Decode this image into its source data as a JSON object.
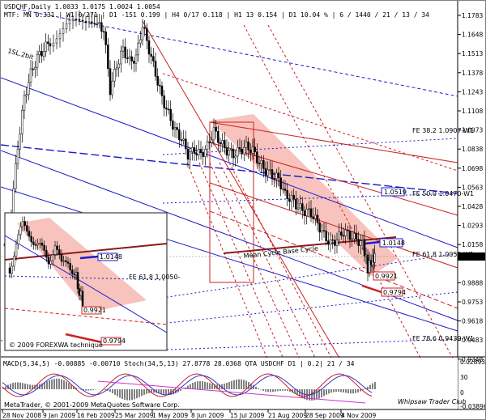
{
  "header": {
    "symbol_line": "USDCHF,Daily  1.0033  1.0175  1.0024  1.0054",
    "mtf_line": "MTF: MN  0.331 | W1  0/271 | D1  -151  0.199 | H4  0/17  0.118 | H1  13  0.154 | D1  10.04 % | 6 / 1440 / 21 / 13 / 34"
  },
  "price_axis": {
    "ticks": [
      "1.1783",
      "1.1648",
      "1.1513",
      "1.1378",
      "1.1243",
      "1.1108",
      "1.0973",
      "1.0838",
      "1.0698",
      "1.0563",
      "1.0428",
      "1.0293",
      "1.0158",
      "1.0054",
      "0.9888",
      "0.9753",
      "0.9618",
      "0.9483",
      "0.9348"
    ],
    "current_price": "1.0054"
  },
  "indicator": {
    "label": "MACD(5,34,5)  -0.00885  -0.00710   Stoch(34,5,13)  27.8778  28.0368   QTA USDCHF D1  |  0.2|  21 / 34",
    "ticks": [
      "0.02893",
      "30",
      "0",
      "-0.03896"
    ]
  },
  "time_axis": {
    "labels": [
      "28 Nov 2008",
      "9 Jan 2009",
      "16 Feb 2009",
      "25 Mar 2009",
      "1 May 2009",
      "8 Jun 2009",
      "15 Jul 2009",
      "21 Aug 2009",
      "28 Sep 2009",
      "4 Nov 2009"
    ]
  },
  "annotations": {
    "fe382": "FE 38.2  1.0907-W1",
    "fe500": "FE 50.0  1.0470-W1",
    "fe618": "FE 61.8  1.0050-W1",
    "fe786": "FE 78.6  0.9439-W1",
    "box_1": "1.0519",
    "box_2": "1.0148",
    "box_3": "0.9921",
    "box_4": "0.9794",
    "cycle_label": "Mean Cycle Base Cycle",
    "small_label": "1SL.2bit"
  },
  "inset": {
    "fe_label": "FE 61.8  1.0050-",
    "box_1": "1.0148",
    "box_2": "0.9921",
    "box_3": "0.9794",
    "watermark": "© 2009 FOREXWA technique"
  },
  "footer": {
    "copyright": "MetaTrader, © 2001-2009 MetaQuotes Software Corp.",
    "signature": "Whipsaw Trader Club"
  },
  "colors": {
    "background": "#ffffff",
    "bull_candle": "#000000",
    "channel_blue": "#1a1acc",
    "channel_red": "#cc2020",
    "shade": "#f4a9a0",
    "brown": "#8b1a1a",
    "current_price_bg": "#000000"
  }
}
